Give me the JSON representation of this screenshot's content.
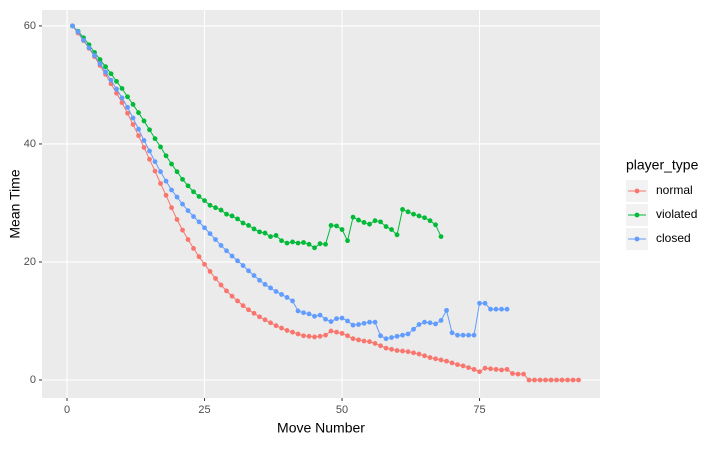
{
  "chart_data": {
    "type": "line",
    "x_label": "Move Number",
    "y_label": "Mean Time",
    "legend_title": "player_type",
    "legend_position": "right",
    "grid": true,
    "x": [
      1,
      2,
      3,
      4,
      5,
      6,
      7,
      8,
      9,
      10,
      11,
      12,
      13,
      14,
      15,
      16,
      17,
      18,
      19,
      20,
      21,
      22,
      23,
      24,
      25,
      26,
      27,
      28,
      29,
      30,
      31,
      32,
      33,
      34,
      35,
      36,
      37,
      38,
      39,
      40,
      41,
      42,
      43,
      44,
      45,
      46,
      47,
      48,
      49,
      50,
      51,
      52,
      53,
      54,
      55,
      56,
      57,
      58,
      59,
      60,
      61,
      62,
      63,
      64,
      65,
      66,
      67,
      68,
      69,
      70,
      71,
      72,
      73,
      74,
      75,
      76,
      77,
      78,
      79,
      80,
      81,
      82,
      83,
      84,
      85,
      86,
      87,
      88,
      89,
      90,
      91,
      92,
      93
    ],
    "series": [
      {
        "name": "normal",
        "color": "#F8766D",
        "values": [
          60,
          58.8,
          57.5,
          56.2,
          54.8,
          53.3,
          51.8,
          50.2,
          48.6,
          47,
          45.2,
          43.3,
          41.4,
          39.4,
          37.4,
          35.4,
          33.3,
          31.3,
          29.2,
          27.2,
          25.4,
          23.8,
          22.3,
          20.9,
          19.6,
          18.4,
          17.2,
          16.1,
          15.1,
          14.2,
          13.4,
          12.6,
          11.9,
          11.3,
          10.7,
          10.2,
          9.7,
          9.2,
          8.8,
          8.4,
          8.1,
          7.8,
          7.5,
          7.4,
          7.3,
          7.4,
          7.6,
          8.3,
          8.1,
          7.9,
          7.5,
          7.0,
          6.8,
          6.6,
          6.5,
          6.2,
          5.8,
          5.4,
          5.2,
          5.0,
          4.9,
          4.8,
          4.6,
          4.4,
          4.1,
          3.8,
          3.6,
          3.4,
          3.2,
          2.9,
          2.6,
          2.4,
          2.1,
          1.8,
          1.4,
          2.0,
          1.9,
          1.8,
          1.7,
          1.8,
          1.1,
          1.0,
          1.0,
          0,
          0,
          0,
          0,
          0,
          0,
          0,
          0,
          0,
          0
        ]
      },
      {
        "name": "violated",
        "color": "#00BA38",
        "values": [
          60,
          59.1,
          58,
          56.8,
          55.5,
          54.3,
          53.1,
          51.9,
          50.6,
          49.4,
          48,
          46.7,
          45.3,
          43.9,
          42.4,
          40.9,
          39.5,
          38,
          36.6,
          35.3,
          34,
          32.9,
          31.9,
          31.1,
          30.4,
          29.6,
          29.2,
          28.8,
          28.1,
          27.8,
          27.3,
          26.6,
          26.2,
          25.6,
          25.1,
          24.9,
          24.3,
          24.5,
          23.6,
          23.2,
          23.4,
          23.2,
          23.3,
          23.0,
          22.4,
          23.1,
          23.0,
          26.2,
          26.1,
          25.5,
          23.6,
          27.6,
          27.1,
          26.7,
          26.4,
          27.0,
          26.8,
          26.0,
          25.5,
          24.6,
          28.9,
          28.5,
          28.1,
          27.8,
          27.5,
          27.0,
          26.3,
          24.3,
          null,
          null,
          null,
          null,
          null,
          null,
          null,
          null,
          null,
          null,
          null,
          null,
          null,
          null,
          null,
          null,
          null,
          null,
          null,
          null,
          null,
          null,
          null,
          null,
          null
        ]
      },
      {
        "name": "closed",
        "color": "#619CFF",
        "values": [
          60,
          59,
          57.6,
          56.3,
          55,
          53.6,
          52.2,
          50.8,
          49.3,
          47.8,
          46.2,
          44.4,
          42.5,
          40.6,
          38.8,
          37,
          35.3,
          33.7,
          32.2,
          31,
          29.8,
          28.7,
          27.7,
          26.8,
          25.8,
          24.8,
          23.8,
          22.8,
          21.9,
          21,
          20.2,
          19.4,
          18.5,
          17.7,
          16.9,
          16.2,
          15.6,
          15,
          14.5,
          14,
          13.4,
          11.7,
          11.4,
          11.2,
          10.8,
          11.0,
          10.3,
          9.9,
          10.4,
          10.5,
          10.0,
          9.3,
          9.4,
          9.6,
          9.8,
          9.8,
          7.5,
          7.0,
          7.2,
          7.4,
          7.6,
          7.8,
          8.6,
          9.4,
          9.8,
          9.7,
          9.5,
          10.1,
          11.8,
          8.0,
          7.6,
          7.6,
          7.6,
          7.6,
          13.0,
          13.0,
          12.0,
          12.0,
          12.0,
          12.0,
          null,
          null,
          null,
          null,
          null,
          null,
          null,
          null,
          null,
          null,
          null,
          null,
          null
        ]
      }
    ],
    "xlim": [
      -4.55,
      96.9
    ],
    "xticks": [
      0,
      25,
      50,
      75
    ],
    "ylim": [
      -3.05,
      62.7
    ],
    "yticks": [
      0,
      20,
      40,
      60
    ]
  }
}
